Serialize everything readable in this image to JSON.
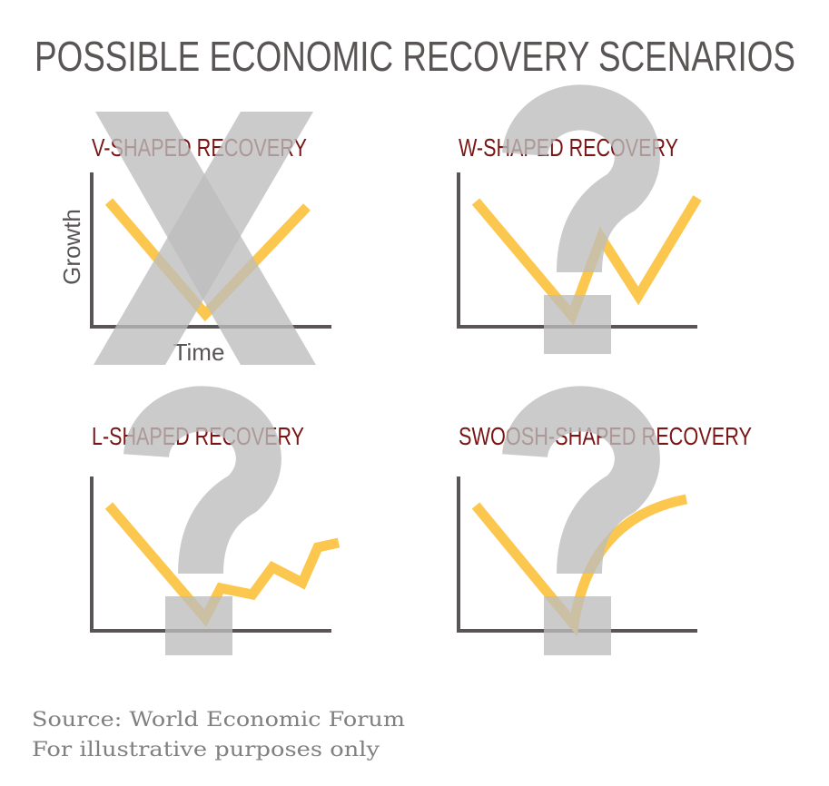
{
  "title": "POSSIBLE ECONOMIC RECOVERY SCENARIOS",
  "colors": {
    "title": "#5a5555",
    "panel_title": "#7a1515",
    "curve": "#fcc74f",
    "overlay": "#bdbdbd",
    "axis": "#5a5555"
  },
  "panels": [
    {
      "title": "V-SHAPED RECOVERY",
      "overlay_icon": "x-icon"
    },
    {
      "title": "W-SHAPED RECOVERY",
      "overlay_icon": "question-mark-icon"
    },
    {
      "title": "L-SHAPED RECOVERY",
      "overlay_icon": "question-mark-icon"
    },
    {
      "title": "SWOOSH-SHAPED RECOVERY",
      "overlay_icon": "question-mark-icon"
    }
  ],
  "axes": {
    "y_label": "Growth",
    "x_label": "Time"
  },
  "footer": {
    "source": "Source: World Economic Forum",
    "note": "For illustrative purposes only"
  }
}
